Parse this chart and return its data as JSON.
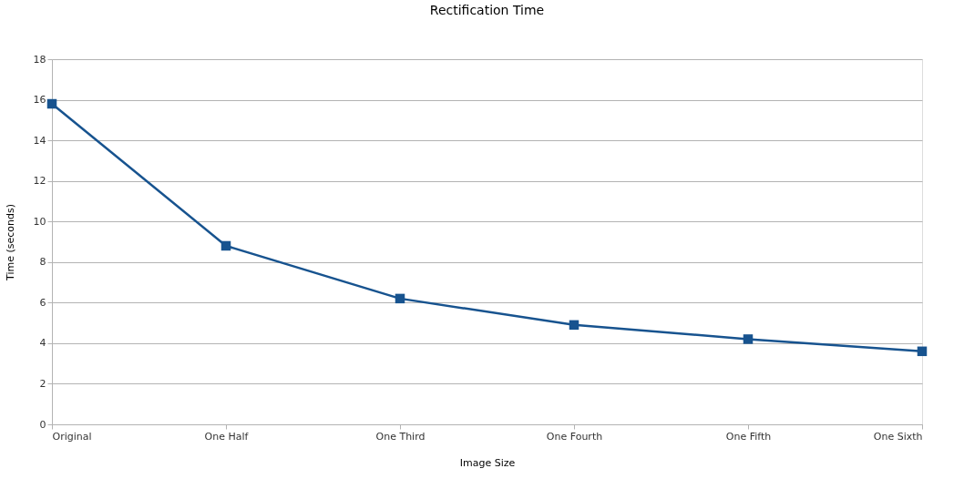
{
  "chart_data": {
    "type": "line",
    "title": "Rectification Time",
    "xlabel": "Image Size",
    "ylabel": "Time (seconds)",
    "categories": [
      "Original",
      "One Half",
      "One Third",
      "One Fourth",
      "One Fifth",
      "One Sixth"
    ],
    "series": [
      {
        "color": "#17538f",
        "values": [
          15.8,
          8.8,
          6.2,
          4.9,
          4.2,
          3.6
        ]
      }
    ],
    "ylim": [
      0,
      18
    ],
    "yticks": [
      0,
      2,
      4,
      6,
      8,
      10,
      12,
      14,
      16,
      18
    ],
    "grid": "y",
    "marker": "square",
    "line_style": "solid",
    "legend": false
  }
}
